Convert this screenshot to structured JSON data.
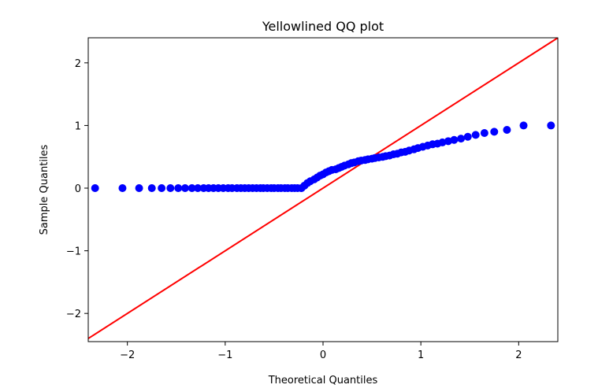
{
  "chart_data": {
    "type": "scatter",
    "title": "Yellowlined QQ plot",
    "xlabel": "Theoretical Quantiles",
    "ylabel": "Sample Quantiles",
    "xlim": [
      -2.4,
      2.4
    ],
    "ylim": [
      -2.45,
      2.4
    ],
    "xticks": [
      -2,
      -1,
      0,
      1,
      2
    ],
    "xtick_labels": [
      "−2",
      "−1",
      "0",
      "1",
      "2"
    ],
    "yticks": [
      -2,
      -1,
      0,
      1,
      2
    ],
    "ytick_labels": [
      "−2",
      "−1",
      "0",
      "1",
      "2"
    ],
    "grid": false,
    "marker_color": "#0000ff",
    "line_color": "#ff0000",
    "reference_line": {
      "x": [
        -2.4,
        2.4
      ],
      "y": [
        -2.4,
        2.4
      ]
    },
    "series": [
      {
        "x": [
          -2.33,
          -2.05,
          -1.88,
          -1.75,
          -1.65,
          -1.56,
          -1.48,
          -1.41,
          -1.34,
          -1.28,
          -1.22,
          -1.17,
          -1.12,
          -1.07,
          -1.02,
          -0.97,
          -0.93,
          -0.88,
          -0.84,
          -0.8,
          -0.76,
          -0.72,
          -0.68,
          -0.64,
          -0.61,
          -0.57,
          -0.53,
          -0.5,
          -0.46,
          -0.43,
          -0.39,
          -0.36,
          -0.32,
          -0.29,
          -0.26,
          -0.22,
          -0.19,
          -0.16,
          -0.13,
          -0.09,
          -0.06,
          -0.03,
          0.0,
          0.03,
          0.06,
          0.09,
          0.13,
          0.16,
          0.19,
          0.22,
          0.26,
          0.29,
          0.32,
          0.36,
          0.39,
          0.43,
          0.46,
          0.5,
          0.53,
          0.57,
          0.61,
          0.64,
          0.68,
          0.72,
          0.76,
          0.8,
          0.84,
          0.88,
          0.93,
          0.97,
          1.02,
          1.07,
          1.12,
          1.17,
          1.22,
          1.28,
          1.34,
          1.41,
          1.48,
          1.56,
          1.65,
          1.75,
          1.88,
          2.05,
          2.33
        ],
        "y": [
          0.0,
          0.0,
          0.0,
          0.0,
          0.0,
          0.0,
          0.0,
          0.0,
          0.0,
          0.0,
          0.0,
          0.0,
          0.0,
          0.0,
          0.0,
          0.0,
          0.0,
          0.0,
          0.0,
          0.0,
          0.0,
          0.0,
          0.0,
          0.0,
          0.0,
          0.0,
          0.0,
          0.0,
          0.0,
          0.0,
          0.0,
          0.0,
          0.0,
          0.0,
          0.0,
          0.0,
          0.04,
          0.08,
          0.11,
          0.14,
          0.17,
          0.2,
          0.22,
          0.25,
          0.27,
          0.29,
          0.3,
          0.32,
          0.34,
          0.36,
          0.38,
          0.4,
          0.41,
          0.43,
          0.44,
          0.45,
          0.46,
          0.47,
          0.48,
          0.49,
          0.5,
          0.51,
          0.52,
          0.54,
          0.55,
          0.57,
          0.58,
          0.6,
          0.62,
          0.64,
          0.66,
          0.68,
          0.7,
          0.71,
          0.73,
          0.75,
          0.77,
          0.79,
          0.82,
          0.85,
          0.88,
          0.9,
          0.93,
          1.0,
          1.0
        ]
      }
    ]
  }
}
